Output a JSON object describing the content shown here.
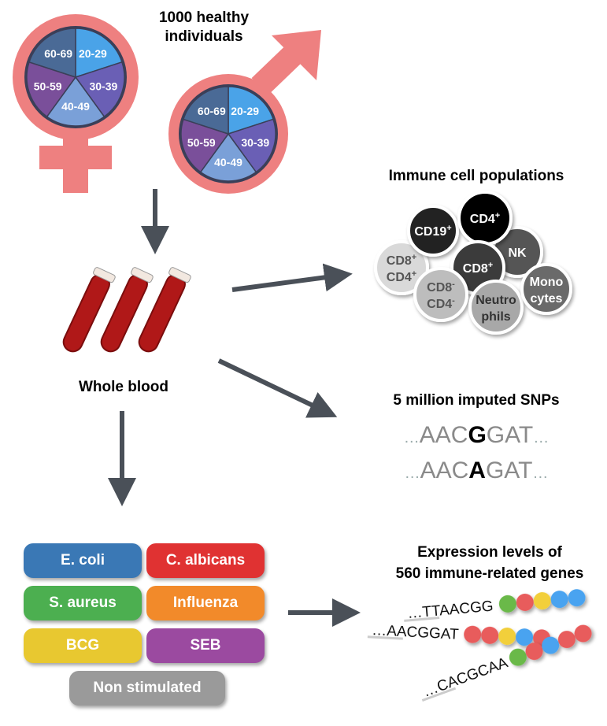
{
  "cohort": {
    "title_line1": "1000 healthy",
    "title_line2": "individuals",
    "age_groups": [
      "20-29",
      "30-39",
      "40-49",
      "50-59",
      "60-69"
    ],
    "age_colors": [
      "#4aa3e8",
      "#6a5fb5",
      "#7aa0d8",
      "#7a4f9a",
      "#4a6a96"
    ],
    "symbol_color": "#ee8080"
  },
  "blood": {
    "label": "Whole blood"
  },
  "immune": {
    "title": "Immune cell populations",
    "cells": [
      {
        "name": "CD8",
        "sup": "+",
        "name2": "CD4",
        "sup2": "+",
        "fill": "#d9d9d9",
        "text": "#555"
      },
      {
        "name": "CD19",
        "sup": "+",
        "fill": "#222222",
        "text": "#fff"
      },
      {
        "name": "NK",
        "fill": "#555555",
        "text": "#fff"
      },
      {
        "name": "CD4",
        "sup": "+",
        "fill": "#000000",
        "text": "#fff"
      },
      {
        "name": "CD8",
        "sup": "+",
        "fill": "#3a3a3a",
        "text": "#fff"
      },
      {
        "name": "CD8",
        "sup": "-",
        "name2": "CD4",
        "sup2": "-",
        "fill": "#bdbdbd",
        "text": "#555"
      },
      {
        "name": "Neutro",
        "name2": "phils",
        "fill": "#a8a8a8",
        "text": "#333"
      },
      {
        "name": "Mono",
        "name2": "cytes",
        "fill": "#6a6a6a",
        "text": "#fff"
      }
    ]
  },
  "snps": {
    "title": "5 million imputed SNPs",
    "seq1": [
      "…",
      "AAC",
      "G",
      "GAT",
      "…"
    ],
    "seq2": [
      "…",
      "AAC",
      "A",
      "GAT",
      "…"
    ]
  },
  "stimuli": [
    {
      "label": "E. coli",
      "color": "#3a78b5"
    },
    {
      "label": "C. albicans",
      "color": "#e03232"
    },
    {
      "label": "S. aureus",
      "color": "#4caf50"
    },
    {
      "label": "Influenza",
      "color": "#f28a2a"
    },
    {
      "label": "BCG",
      "color": "#e8c830"
    },
    {
      "label": "SEB",
      "color": "#9b4aa0"
    },
    {
      "label": "Non stimulated",
      "color": "#9a9a9a"
    }
  ],
  "expression": {
    "title_line1": "Expression levels of",
    "title_line2": "560 immune-related genes",
    "seqs": [
      "…TTAACGG",
      "…AACGGAT",
      "…CACGCAA"
    ],
    "bead_colors": {
      "green": "#6ab94a",
      "red": "#e85c5c",
      "yellow": "#f2cf3a",
      "blue": "#4aa3f0"
    }
  }
}
